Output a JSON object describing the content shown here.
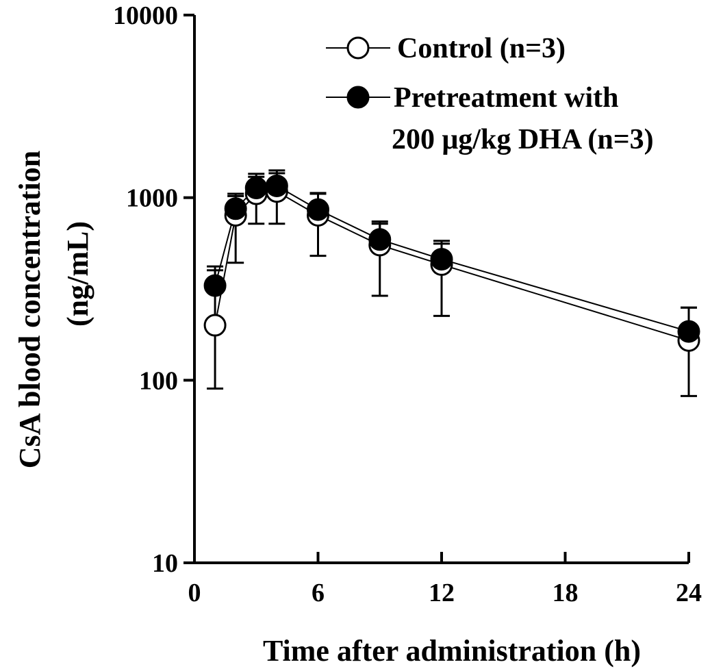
{
  "chart_data": {
    "type": "line",
    "title": "",
    "xlabel": "Time after administration (h)",
    "ylabel": "CsA blood concentration",
    "ylabel_unit": "(ng/mL)",
    "xlim": [
      0,
      24
    ],
    "ylim": [
      10,
      10000
    ],
    "yscale": "log",
    "grid": false,
    "legend_position": "top-right",
    "x_ticks": [
      0,
      6,
      12,
      18,
      24
    ],
    "x_tick_labels": [
      "0",
      "6",
      "12",
      "18",
      "24"
    ],
    "y_ticks": [
      10,
      100,
      1000,
      10000
    ],
    "y_tick_labels": [
      "10",
      "100",
      "1000",
      "10000"
    ],
    "series": [
      {
        "name": "Control (n=3)",
        "marker": "open-circle",
        "color": "#000000",
        "x": [
          1,
          2,
          3,
          4,
          6,
          9,
          12,
          24
        ],
        "y": [
          200,
          800,
          1050,
          1080,
          800,
          550,
          430,
          165
        ],
        "error_lower": [
          90,
          440,
          720,
          720,
          480,
          290,
          225,
          82
        ],
        "error_upper": [
          400,
          1020,
          1300,
          1360,
          1050,
          720,
          560,
          250
        ]
      },
      {
        "name": "Pretreatment with 200 μg/kg DHA (n=3)",
        "name_lines": [
          "Pretreatment with",
          "200 μg/kg DHA (n=3)"
        ],
        "marker": "filled-circle",
        "color": "#000000",
        "x": [
          1,
          2,
          3,
          4,
          6,
          9,
          12,
          24
        ],
        "y": [
          330,
          870,
          1130,
          1160,
          860,
          590,
          460,
          185
        ],
        "error_lower": [
          330,
          870,
          1130,
          1160,
          860,
          590,
          460,
          185
        ],
        "error_upper": [
          420,
          1050,
          1350,
          1410,
          1060,
          740,
          580,
          250
        ]
      }
    ]
  }
}
